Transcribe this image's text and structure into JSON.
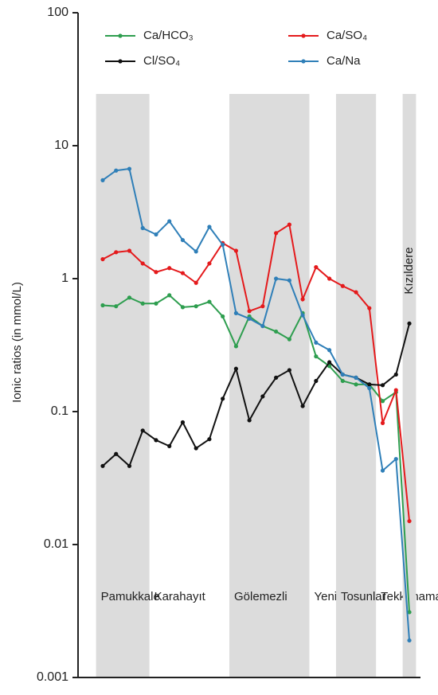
{
  "chart_data": {
    "type": "line",
    "y_label": "Ionic ratios (in mmol/L)",
    "log_y": true,
    "ylim": [
      0.001,
      100
    ],
    "yticks": [
      0.001,
      0.01,
      0.1,
      1,
      10,
      100
    ],
    "categories": [
      null,
      null,
      null,
      null,
      null,
      null,
      null,
      null,
      null,
      null,
      null,
      null,
      null,
      null,
      null,
      null,
      null,
      null,
      null,
      null,
      null,
      null,
      null,
      null
    ],
    "bands": [
      {
        "label": "Pamukkale",
        "from": 0,
        "to": 3,
        "shaded": true
      },
      {
        "label": "Karahayıt",
        "from": 4,
        "to": 9,
        "shaded": false
      },
      {
        "label": "Gölemezli",
        "from": 10,
        "to": 15,
        "shaded": true
      },
      {
        "label": "Yenicekent",
        "from": 16,
        "to": 17,
        "shaded": false
      },
      {
        "label": "Tosunlar",
        "from": 18,
        "to": 20,
        "shaded": true
      },
      {
        "label": "Tekkehamam",
        "from": 21,
        "to": 22,
        "shaded": false
      },
      {
        "label": "Kızıldere",
        "from": 23,
        "to": 23,
        "shaded": true
      }
    ],
    "series": [
      {
        "name": "Ca/HCO₃",
        "color": "#2e9e4f",
        "values": [
          0.63,
          0.62,
          0.72,
          0.65,
          0.65,
          0.75,
          0.61,
          0.62,
          0.67,
          0.52,
          0.31,
          0.52,
          0.44,
          0.4,
          0.35,
          0.55,
          0.26,
          0.22,
          0.17,
          0.16,
          0.16,
          0.12,
          0.14,
          0.0031
        ]
      },
      {
        "name": "Ca/SO₄",
        "color": "#e41a1c",
        "values": [
          1.4,
          1.58,
          1.62,
          1.3,
          1.12,
          1.2,
          1.1,
          0.93,
          1.3,
          1.85,
          1.62,
          0.57,
          0.62,
          2.2,
          2.55,
          0.7,
          1.22,
          1.0,
          0.88,
          0.79,
          0.6,
          0.082,
          0.145,
          0.015
        ]
      },
      {
        "name": "Cl/SO₄",
        "color": "#111111",
        "values": [
          0.039,
          0.048,
          0.039,
          0.072,
          0.061,
          0.055,
          0.083,
          0.053,
          0.062,
          0.125,
          0.21,
          0.086,
          0.13,
          0.18,
          0.205,
          0.11,
          0.17,
          0.235,
          0.19,
          0.18,
          0.16,
          0.158,
          0.19,
          0.46
        ]
      },
      {
        "name": "Ca/Na",
        "color": "#2f7fb8",
        "values": [
          5.5,
          6.5,
          6.7,
          2.4,
          2.15,
          2.7,
          1.95,
          1.6,
          2.45,
          1.8,
          0.55,
          0.5,
          0.44,
          1.0,
          0.97,
          0.53,
          0.33,
          0.29,
          0.19,
          0.18,
          0.15,
          0.036,
          0.044,
          0.0019
        ]
      }
    ]
  }
}
